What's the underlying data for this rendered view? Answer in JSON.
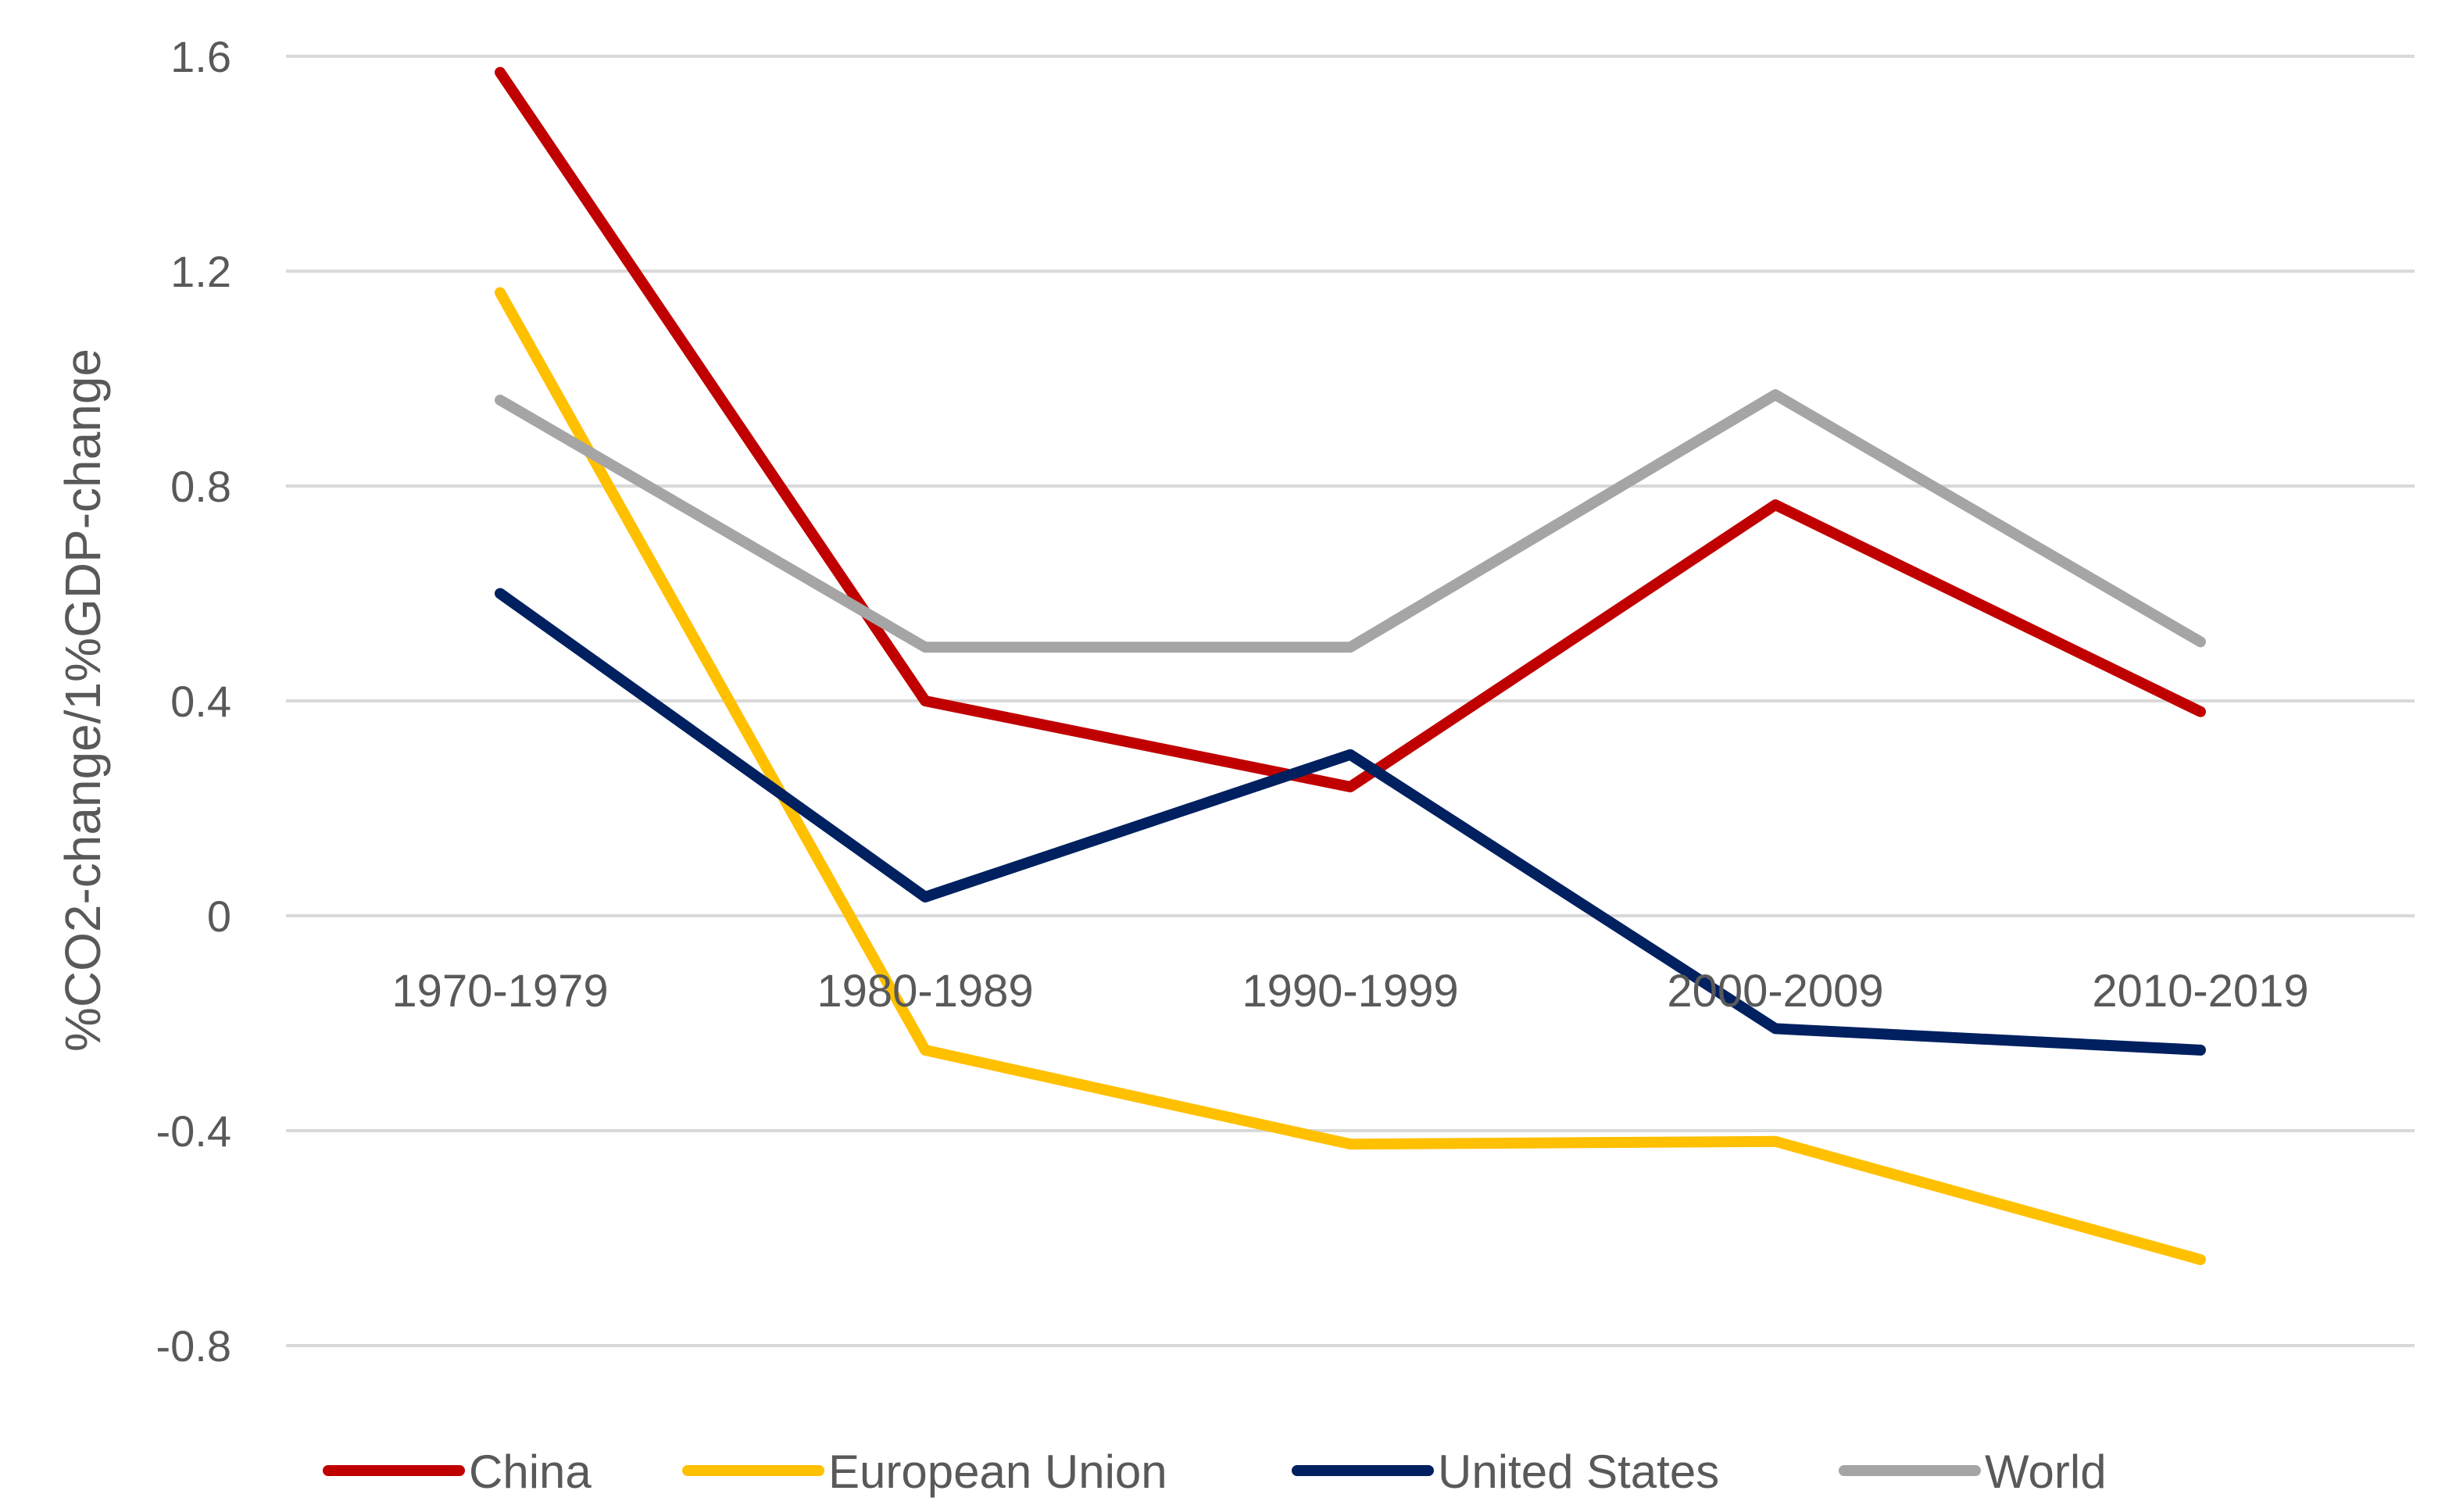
{
  "chart_data": {
    "type": "line",
    "title": "",
    "xlabel": "",
    "ylabel": "%CO2-change/1%GDP-change",
    "ylim": [
      -0.8,
      1.6
    ],
    "yticks": [
      "1.6",
      "1.2",
      "0.8",
      "0.4",
      "0",
      "-0.4",
      "-0.8"
    ],
    "ytick_values": [
      1.6,
      1.2,
      0.8,
      0.4,
      0,
      -0.4,
      -0.8
    ],
    "grid": true,
    "legend_position": "bottom",
    "categories": [
      "1970-1979",
      "1980-1989",
      "1990-1999",
      "2000-2009",
      "2010-2019"
    ],
    "series": [
      {
        "name": "China",
        "color": "#C00000",
        "values": [
          1.57,
          0.4,
          0.24,
          0.765,
          0.38
        ]
      },
      {
        "name": "European Union",
        "color": "#FFC000",
        "values": [
          1.16,
          -0.25,
          -0.425,
          -0.42,
          -0.64
        ]
      },
      {
        "name": "United States",
        "color": "#002060",
        "values": [
          0.6,
          0.035,
          0.3,
          -0.21,
          -0.25
        ]
      },
      {
        "name": "World",
        "color": "#A5A5A5",
        "values": [
          0.96,
          0.5,
          0.5,
          0.97,
          0.51
        ]
      }
    ]
  }
}
